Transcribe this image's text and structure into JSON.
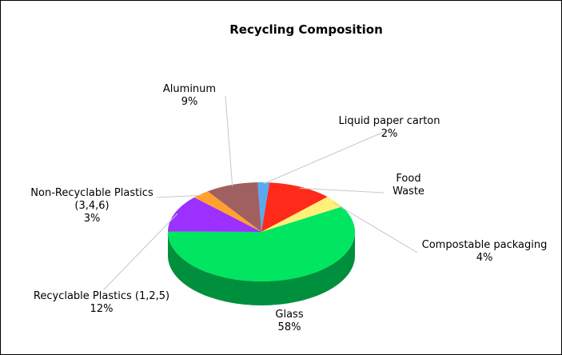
{
  "chart_data": {
    "type": "pie",
    "title": "Recycling Composition",
    "slices": [
      {
        "label": "Liquid paper carton",
        "value": 2,
        "value_label": "2%",
        "color": "#5aa9f0"
      },
      {
        "label": "Food Waste",
        "value": 11,
        "value_label": "",
        "color": "#ff2a1a"
      },
      {
        "label": "Compostable packaging",
        "value": 4,
        "value_label": "4%",
        "color": "#fff07a"
      },
      {
        "label": "Glass",
        "value": 58,
        "value_label": "58%",
        "color": "#00e660"
      },
      {
        "label": "Recyclable Plastics (1,2,5)",
        "value": 12,
        "value_label": "12%",
        "color": "#9b30ff"
      },
      {
        "label": "Non-Recyclable Plastics (3,4,6)",
        "value": 3,
        "value_label": "3%",
        "color": "#ffa030"
      },
      {
        "label": "Aluminum",
        "value": 9,
        "value_label": "9%",
        "color": "#a06060"
      }
    ],
    "labels_display": [
      {
        "lines": [
          "Liquid paper carton",
          "2%"
        ]
      },
      {
        "lines": [
          "Food",
          "Waste"
        ]
      },
      {
        "lines": [
          "Compostable packaging",
          "4%"
        ]
      },
      {
        "lines": [
          "Glass",
          "58%"
        ]
      },
      {
        "lines": [
          "Recyclable Plastics (1,2,5)",
          "12%"
        ]
      },
      {
        "lines": [
          "Non-Recyclable Plastics",
          "(3,4,6)",
          "3%"
        ]
      },
      {
        "lines": [
          "Aluminum",
          "9%"
        ]
      }
    ],
    "style": "3d-pie",
    "legend": "none"
  }
}
